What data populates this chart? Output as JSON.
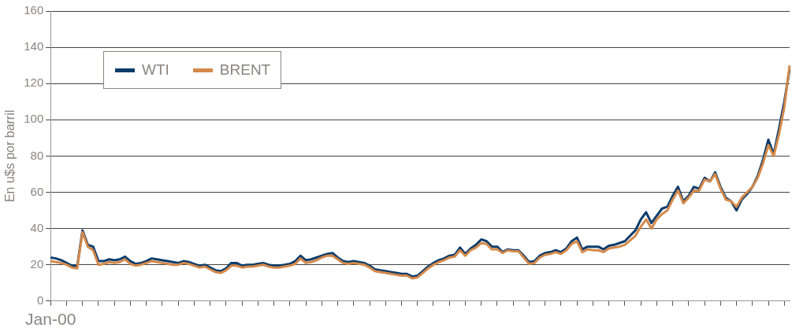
{
  "chart_data": {
    "type": "line",
    "ylabel": "En u$s por barril",
    "categories": [
      "Jan-00",
      null,
      null,
      null,
      null,
      null,
      null,
      null,
      null,
      null,
      null,
      null,
      null,
      null,
      null,
      null,
      null,
      null,
      null,
      null,
      null,
      null,
      null,
      null,
      null,
      null,
      null,
      null,
      null,
      null,
      null,
      null,
      null,
      null,
      null,
      null,
      null,
      null,
      null,
      null,
      null,
      null,
      null,
      null,
      null,
      null,
      null,
      null,
      null,
      null,
      null,
      null,
      null,
      null,
      null,
      null,
      null,
      null,
      null,
      null,
      null,
      null,
      null,
      null,
      null,
      null,
      null,
      null,
      null,
      null,
      null,
      null,
      null,
      null,
      null,
      null,
      null,
      null,
      null,
      null,
      null,
      null,
      null,
      null,
      null,
      null,
      null,
      null,
      null,
      null,
      null,
      null,
      null,
      null,
      null,
      null,
      null,
      null,
      null,
      null,
      null,
      null,
      null,
      null,
      null,
      null,
      null,
      null,
      null,
      null,
      null,
      null,
      null,
      null,
      null,
      null,
      null,
      null,
      null,
      null,
      null,
      null,
      null,
      null,
      null,
      null,
      null,
      null,
      null,
      null,
      null,
      null,
      null,
      null,
      null,
      null,
      null,
      null,
      null,
      null
    ],
    "series": [
      {
        "name": "WTI",
        "color": "#0b3c6b",
        "values": [
          24,
          23.5,
          22.5,
          21,
          19.5,
          19,
          39,
          31,
          30,
          22,
          22,
          23,
          22.5,
          23,
          24.5,
          22,
          20.5,
          21,
          22,
          23.5,
          23,
          22.5,
          22,
          21.5,
          21,
          22,
          21.5,
          20.5,
          19.5,
          20,
          18.5,
          17,
          16.5,
          18,
          21,
          21,
          19.5,
          20,
          20,
          20.5,
          21,
          20,
          19.5,
          19.5,
          20,
          20.5,
          22,
          25,
          22.5,
          23,
          24,
          25,
          26,
          26.5,
          24,
          22,
          21.5,
          22,
          21.5,
          21,
          19.5,
          17.5,
          17,
          16.5,
          16,
          15.5,
          15,
          15,
          13.5,
          14,
          16.5,
          19,
          21,
          22.5,
          23.5,
          25,
          25.5,
          29.5,
          26,
          29,
          31,
          34,
          33,
          30,
          30,
          27,
          28.5,
          28,
          28,
          25,
          21.5,
          22,
          25,
          26.5,
          27,
          28,
          27,
          29,
          33,
          35,
          28.5,
          30,
          30,
          30,
          28.5,
          30.5,
          31,
          32,
          33,
          36,
          39,
          45,
          49,
          43,
          47,
          51,
          52,
          58,
          63,
          55,
          58,
          63,
          62,
          68,
          66,
          71,
          63,
          57,
          55,
          50,
          56,
          59,
          63,
          69,
          78,
          89,
          81,
          95,
          110,
          128
        ]
      },
      {
        "name": "BRENT",
        "color": "#d4894a",
        "values": [
          22,
          21.5,
          21,
          20,
          18.5,
          18,
          38,
          30,
          28,
          20,
          20.5,
          21.5,
          21,
          21.5,
          23,
          20.5,
          19.5,
          20,
          21,
          22,
          21.5,
          21,
          20.5,
          20,
          20,
          21,
          20.5,
          19.5,
          18.5,
          19,
          17.5,
          16,
          15.5,
          17,
          19.5,
          19.5,
          18.5,
          19,
          19,
          19.5,
          20,
          19,
          18.5,
          18.5,
          19,
          19.5,
          20.5,
          23.5,
          21,
          21.5,
          22.5,
          24,
          25,
          25,
          23,
          21,
          20.5,
          21,
          20.5,
          20,
          18.5,
          16.5,
          16,
          15.5,
          15,
          14.5,
          14,
          14,
          12.5,
          13,
          15.5,
          18,
          20,
          21.5,
          22.5,
          24,
          24.5,
          28,
          25,
          28,
          29.5,
          32,
          31.5,
          28.5,
          28.5,
          26.5,
          28,
          27.5,
          27.5,
          24,
          20.5,
          21,
          24,
          25.5,
          26,
          27,
          26,
          28,
          31.5,
          33,
          27,
          28.5,
          28,
          28,
          27,
          29,
          29.5,
          30,
          31,
          33.5,
          36,
          41,
          45,
          40,
          45,
          48,
          50,
          56,
          61,
          54,
          57,
          61,
          61,
          67,
          66,
          70,
          62,
          56,
          55,
          52,
          57,
          60,
          63,
          68,
          76,
          86,
          80,
          92,
          107,
          130
        ]
      }
    ],
    "ylim": [
      0,
      160
    ],
    "yticks": [
      0,
      20,
      40,
      60,
      80,
      100,
      120,
      140,
      160
    ],
    "grid": "y",
    "legend": "top left",
    "marker": "none",
    "line_style": "solid"
  }
}
